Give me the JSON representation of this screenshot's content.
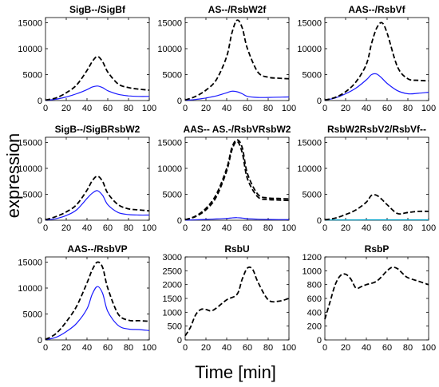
{
  "figure": {
    "ylabel": "expression",
    "xlabel": "Time [min]"
  },
  "colors": {
    "black_dashed": "#000000",
    "blue": "#1a1aff",
    "cyan": "#00a0c8",
    "axis": "#000000"
  },
  "chart_data": [
    {
      "type": "line",
      "title": "SigB--/SigBf",
      "xlim": [
        0,
        100
      ],
      "ylim": [
        0,
        16000
      ],
      "xticks": [
        0,
        20,
        40,
        60,
        80,
        100
      ],
      "yticks": [
        0,
        5000,
        10000,
        15000
      ],
      "series": [
        {
          "style": "dashed",
          "color": "black_dashed",
          "x": [
            0,
            10,
            20,
            30,
            40,
            45,
            50,
            55,
            60,
            70,
            80,
            90,
            100
          ],
          "y": [
            100,
            500,
            1500,
            3000,
            5800,
            7500,
            8500,
            7500,
            5500,
            3200,
            2500,
            2200,
            2000
          ]
        },
        {
          "style": "solid",
          "color": "blue",
          "x": [
            0,
            10,
            20,
            30,
            40,
            45,
            50,
            55,
            60,
            70,
            80,
            90,
            100
          ],
          "y": [
            50,
            250,
            700,
            1300,
            2100,
            2600,
            2800,
            2500,
            1900,
            1200,
            900,
            800,
            800
          ]
        }
      ]
    },
    {
      "type": "line",
      "title": "AS--/RsbW2f",
      "xlim": [
        0,
        100
      ],
      "ylim": [
        0,
        16000
      ],
      "xticks": [
        0,
        20,
        40,
        60,
        80,
        100
      ],
      "yticks": [
        0,
        5000,
        10000,
        15000
      ],
      "series": [
        {
          "style": "dashed",
          "color": "black_dashed",
          "x": [
            0,
            10,
            20,
            30,
            40,
            45,
            50,
            55,
            60,
            70,
            80,
            90,
            100
          ],
          "y": [
            100,
            800,
            2000,
            4000,
            8500,
            13000,
            15500,
            14000,
            10000,
            5500,
            4500,
            4300,
            4200
          ]
        },
        {
          "style": "solid",
          "color": "blue",
          "x": [
            0,
            10,
            20,
            30,
            40,
            45,
            50,
            55,
            60,
            70,
            80,
            90,
            100
          ],
          "y": [
            50,
            200,
            500,
            900,
            1500,
            1800,
            1700,
            1300,
            800,
            600,
            600,
            650,
            700
          ]
        }
      ]
    },
    {
      "type": "line",
      "title": "AAS--/RsbVf",
      "xlim": [
        0,
        100
      ],
      "ylim": [
        0,
        16000
      ],
      "xticks": [
        0,
        20,
        40,
        60,
        80,
        100
      ],
      "yticks": [
        0,
        5000,
        10000,
        15000
      ],
      "series": [
        {
          "style": "dashed",
          "color": "black_dashed",
          "x": [
            0,
            10,
            20,
            30,
            40,
            45,
            50,
            55,
            60,
            70,
            80,
            90,
            100
          ],
          "y": [
            100,
            600,
            1700,
            3600,
            7000,
            11000,
            14000,
            15000,
            13000,
            6500,
            4200,
            3900,
            3800
          ]
        },
        {
          "style": "solid",
          "color": "blue",
          "x": [
            0,
            10,
            20,
            30,
            40,
            45,
            50,
            55,
            60,
            70,
            80,
            90,
            100
          ],
          "y": [
            80,
            500,
            1300,
            2400,
            4000,
            5000,
            5100,
            4300,
            3300,
            1900,
            1300,
            1400,
            1600
          ]
        }
      ]
    },
    {
      "type": "line",
      "title": "SigB--/SigBRsbW2",
      "xlim": [
        0,
        100
      ],
      "ylim": [
        0,
        16000
      ],
      "xticks": [
        0,
        20,
        40,
        60,
        80,
        100
      ],
      "yticks": [
        0,
        5000,
        10000,
        15000
      ],
      "series": [
        {
          "style": "dashed",
          "color": "black_dashed",
          "x": [
            0,
            10,
            20,
            30,
            40,
            45,
            50,
            55,
            60,
            70,
            80,
            90,
            100
          ],
          "y": [
            100,
            700,
            1600,
            3000,
            5800,
            7600,
            8500,
            7500,
            5200,
            3000,
            2200,
            2000,
            1800
          ]
        },
        {
          "style": "solid",
          "color": "blue",
          "x": [
            0,
            10,
            20,
            30,
            40,
            45,
            50,
            55,
            60,
            70,
            80,
            90,
            100
          ],
          "y": [
            50,
            300,
            900,
            2000,
            4200,
            5200,
            5700,
            4800,
            3000,
            1500,
            1100,
            1000,
            1000
          ]
        }
      ]
    },
    {
      "type": "line",
      "title": "AAS-- AS.-/RsbVRsbW2",
      "xlim": [
        0,
        100
      ],
      "ylim": [
        0,
        16000
      ],
      "xticks": [
        0,
        20,
        40,
        60,
        80,
        100
      ],
      "yticks": [
        0,
        5000,
        10000,
        15000
      ],
      "series": [
        {
          "style": "dashed",
          "color": "black_dashed",
          "x": [
            0,
            10,
            20,
            30,
            40,
            45,
            50,
            55,
            60,
            70,
            80,
            90,
            100
          ],
          "y": [
            100,
            800,
            2300,
            5000,
            10000,
            14000,
            15500,
            14000,
            9000,
            5000,
            4300,
            4200,
            4100
          ]
        },
        {
          "style": "dashed",
          "color": "black_dashed",
          "x": [
            0,
            10,
            20,
            30,
            40,
            45,
            50,
            55,
            60,
            70,
            80,
            90,
            100
          ],
          "y": [
            100,
            700,
            2000,
            4500,
            9500,
            13500,
            15200,
            13000,
            8000,
            4500,
            4000,
            3900,
            3800
          ]
        },
        {
          "style": "solid",
          "color": "blue",
          "x": [
            0,
            10,
            20,
            30,
            40,
            45,
            50,
            55,
            60,
            70,
            80,
            90,
            100
          ],
          "y": [
            20,
            80,
            150,
            250,
            350,
            450,
            500,
            420,
            300,
            200,
            150,
            130,
            120
          ]
        }
      ]
    },
    {
      "type": "line",
      "title": "RsbW2RsbV2/RsbVf--",
      "xlim": [
        0,
        100
      ],
      "ylim": [
        0,
        16000
      ],
      "xticks": [
        0,
        20,
        40,
        60,
        80,
        100
      ],
      "yticks": [
        0,
        5000,
        10000,
        15000
      ],
      "series": [
        {
          "style": "dashed",
          "color": "black_dashed",
          "x": [
            0,
            10,
            20,
            30,
            40,
            45,
            50,
            55,
            60,
            70,
            80,
            90,
            100
          ],
          "y": [
            100,
            400,
            1100,
            2000,
            3500,
            4800,
            4800,
            4000,
            3000,
            1300,
            1500,
            1700,
            1700
          ]
        },
        {
          "style": "solid",
          "color": "cyan",
          "x": [
            0,
            20,
            40,
            60,
            80,
            100
          ],
          "y": [
            50,
            60,
            70,
            70,
            70,
            70
          ]
        }
      ]
    },
    {
      "type": "line",
      "title": "AAS--/RsbVP",
      "xlim": [
        0,
        100
      ],
      "ylim": [
        0,
        16000
      ],
      "xticks": [
        0,
        20,
        40,
        60,
        80,
        100
      ],
      "yticks": [
        0,
        5000,
        10000,
        15000
      ],
      "series": [
        {
          "style": "dashed",
          "color": "black_dashed",
          "x": [
            0,
            10,
            20,
            30,
            40,
            45,
            50,
            55,
            60,
            70,
            80,
            90,
            100
          ],
          "y": [
            100,
            1200,
            3500,
            6500,
            11000,
            13500,
            15000,
            14000,
            10000,
            5000,
            3800,
            3700,
            3600
          ]
        },
        {
          "style": "solid",
          "color": "blue",
          "x": [
            0,
            10,
            20,
            30,
            40,
            45,
            50,
            55,
            60,
            70,
            80,
            90,
            100
          ],
          "y": [
            50,
            500,
            1600,
            3200,
            6000,
            8800,
            10300,
            9000,
            5500,
            2800,
            2100,
            2000,
            1800
          ]
        }
      ]
    },
    {
      "type": "line",
      "title": "RsbU",
      "xlim": [
        0,
        100
      ],
      "ylim": [
        0,
        3000
      ],
      "xticks": [
        0,
        20,
        40,
        60,
        80,
        100
      ],
      "yticks": [
        0,
        500,
        1000,
        1500,
        2000,
        2500,
        3000
      ],
      "series": [
        {
          "style": "dashed",
          "color": "black_dashed",
          "x": [
            0,
            5,
            10,
            15,
            20,
            25,
            30,
            40,
            50,
            55,
            60,
            65,
            70,
            80,
            90,
            100
          ],
          "y": [
            150,
            450,
            900,
            1100,
            1100,
            1050,
            1150,
            1450,
            1650,
            2200,
            2600,
            2550,
            2100,
            1450,
            1400,
            1500
          ]
        }
      ]
    },
    {
      "type": "line",
      "title": "RsbP",
      "xlim": [
        0,
        100
      ],
      "ylim": [
        0,
        1200
      ],
      "xticks": [
        0,
        20,
        40,
        60,
        80,
        100
      ],
      "yticks": [
        0,
        200,
        400,
        600,
        800,
        1000,
        1200
      ],
      "series": [
        {
          "style": "dashed",
          "color": "black_dashed",
          "x": [
            0,
            5,
            10,
            15,
            20,
            25,
            30,
            35,
            40,
            50,
            60,
            65,
            70,
            75,
            80,
            90,
            100
          ],
          "y": [
            300,
            550,
            800,
            930,
            950,
            880,
            750,
            770,
            800,
            850,
            1000,
            1050,
            1030,
            960,
            900,
            850,
            800
          ]
        }
      ]
    }
  ]
}
